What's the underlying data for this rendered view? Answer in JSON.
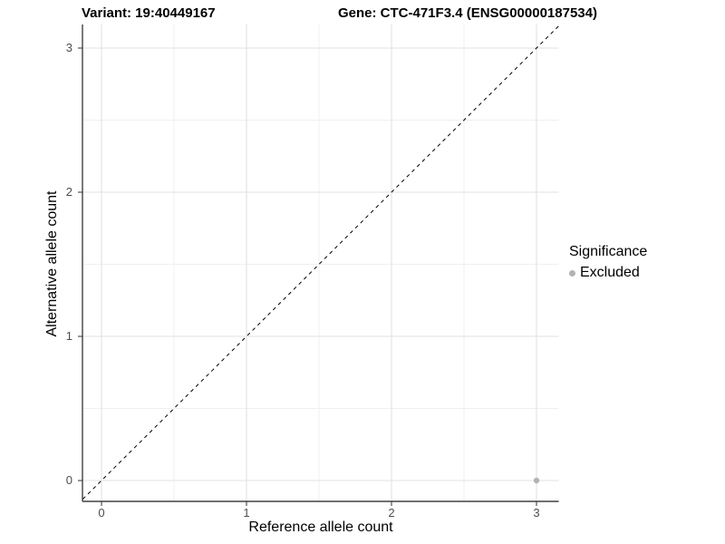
{
  "titles": {
    "variant": "Variant: 19:40449167",
    "gene": "Gene: CTC-471F3.4 (ENSG00000187534)"
  },
  "chart_data": {
    "type": "scatter",
    "xlabel": "Reference allele count",
    "ylabel": "Alternative allele count",
    "x_ticks": [
      0,
      1,
      2,
      3
    ],
    "y_ticks": [
      0,
      1,
      2,
      3
    ],
    "x_minor_ticks": [
      0.5,
      1.5,
      2.5
    ],
    "y_minor_ticks": [
      0.5,
      1.5,
      2.5
    ],
    "xlim": [
      -0.15,
      3.15
    ],
    "ylim": [
      -0.15,
      3.15
    ],
    "grid": "major+minor",
    "reference_line": {
      "type": "identity-diagonal",
      "style": "dashed",
      "color": "#000000"
    },
    "series": [
      {
        "name": "Excluded",
        "color": "#b3b3b3",
        "points": [
          {
            "x": 3,
            "y": 0
          }
        ]
      }
    ],
    "legend": {
      "title": "Significance",
      "position": "right",
      "entries": [
        {
          "label": "Excluded",
          "color": "#b3b3b3"
        }
      ]
    },
    "colors": {
      "grid_major": "#e2e2e2",
      "grid_minor": "#f0f0f0",
      "axis_line": "#404040",
      "tick_mark": "#404040",
      "axis_text": "#4d4d4d",
      "panel_background": "#ffffff"
    }
  }
}
